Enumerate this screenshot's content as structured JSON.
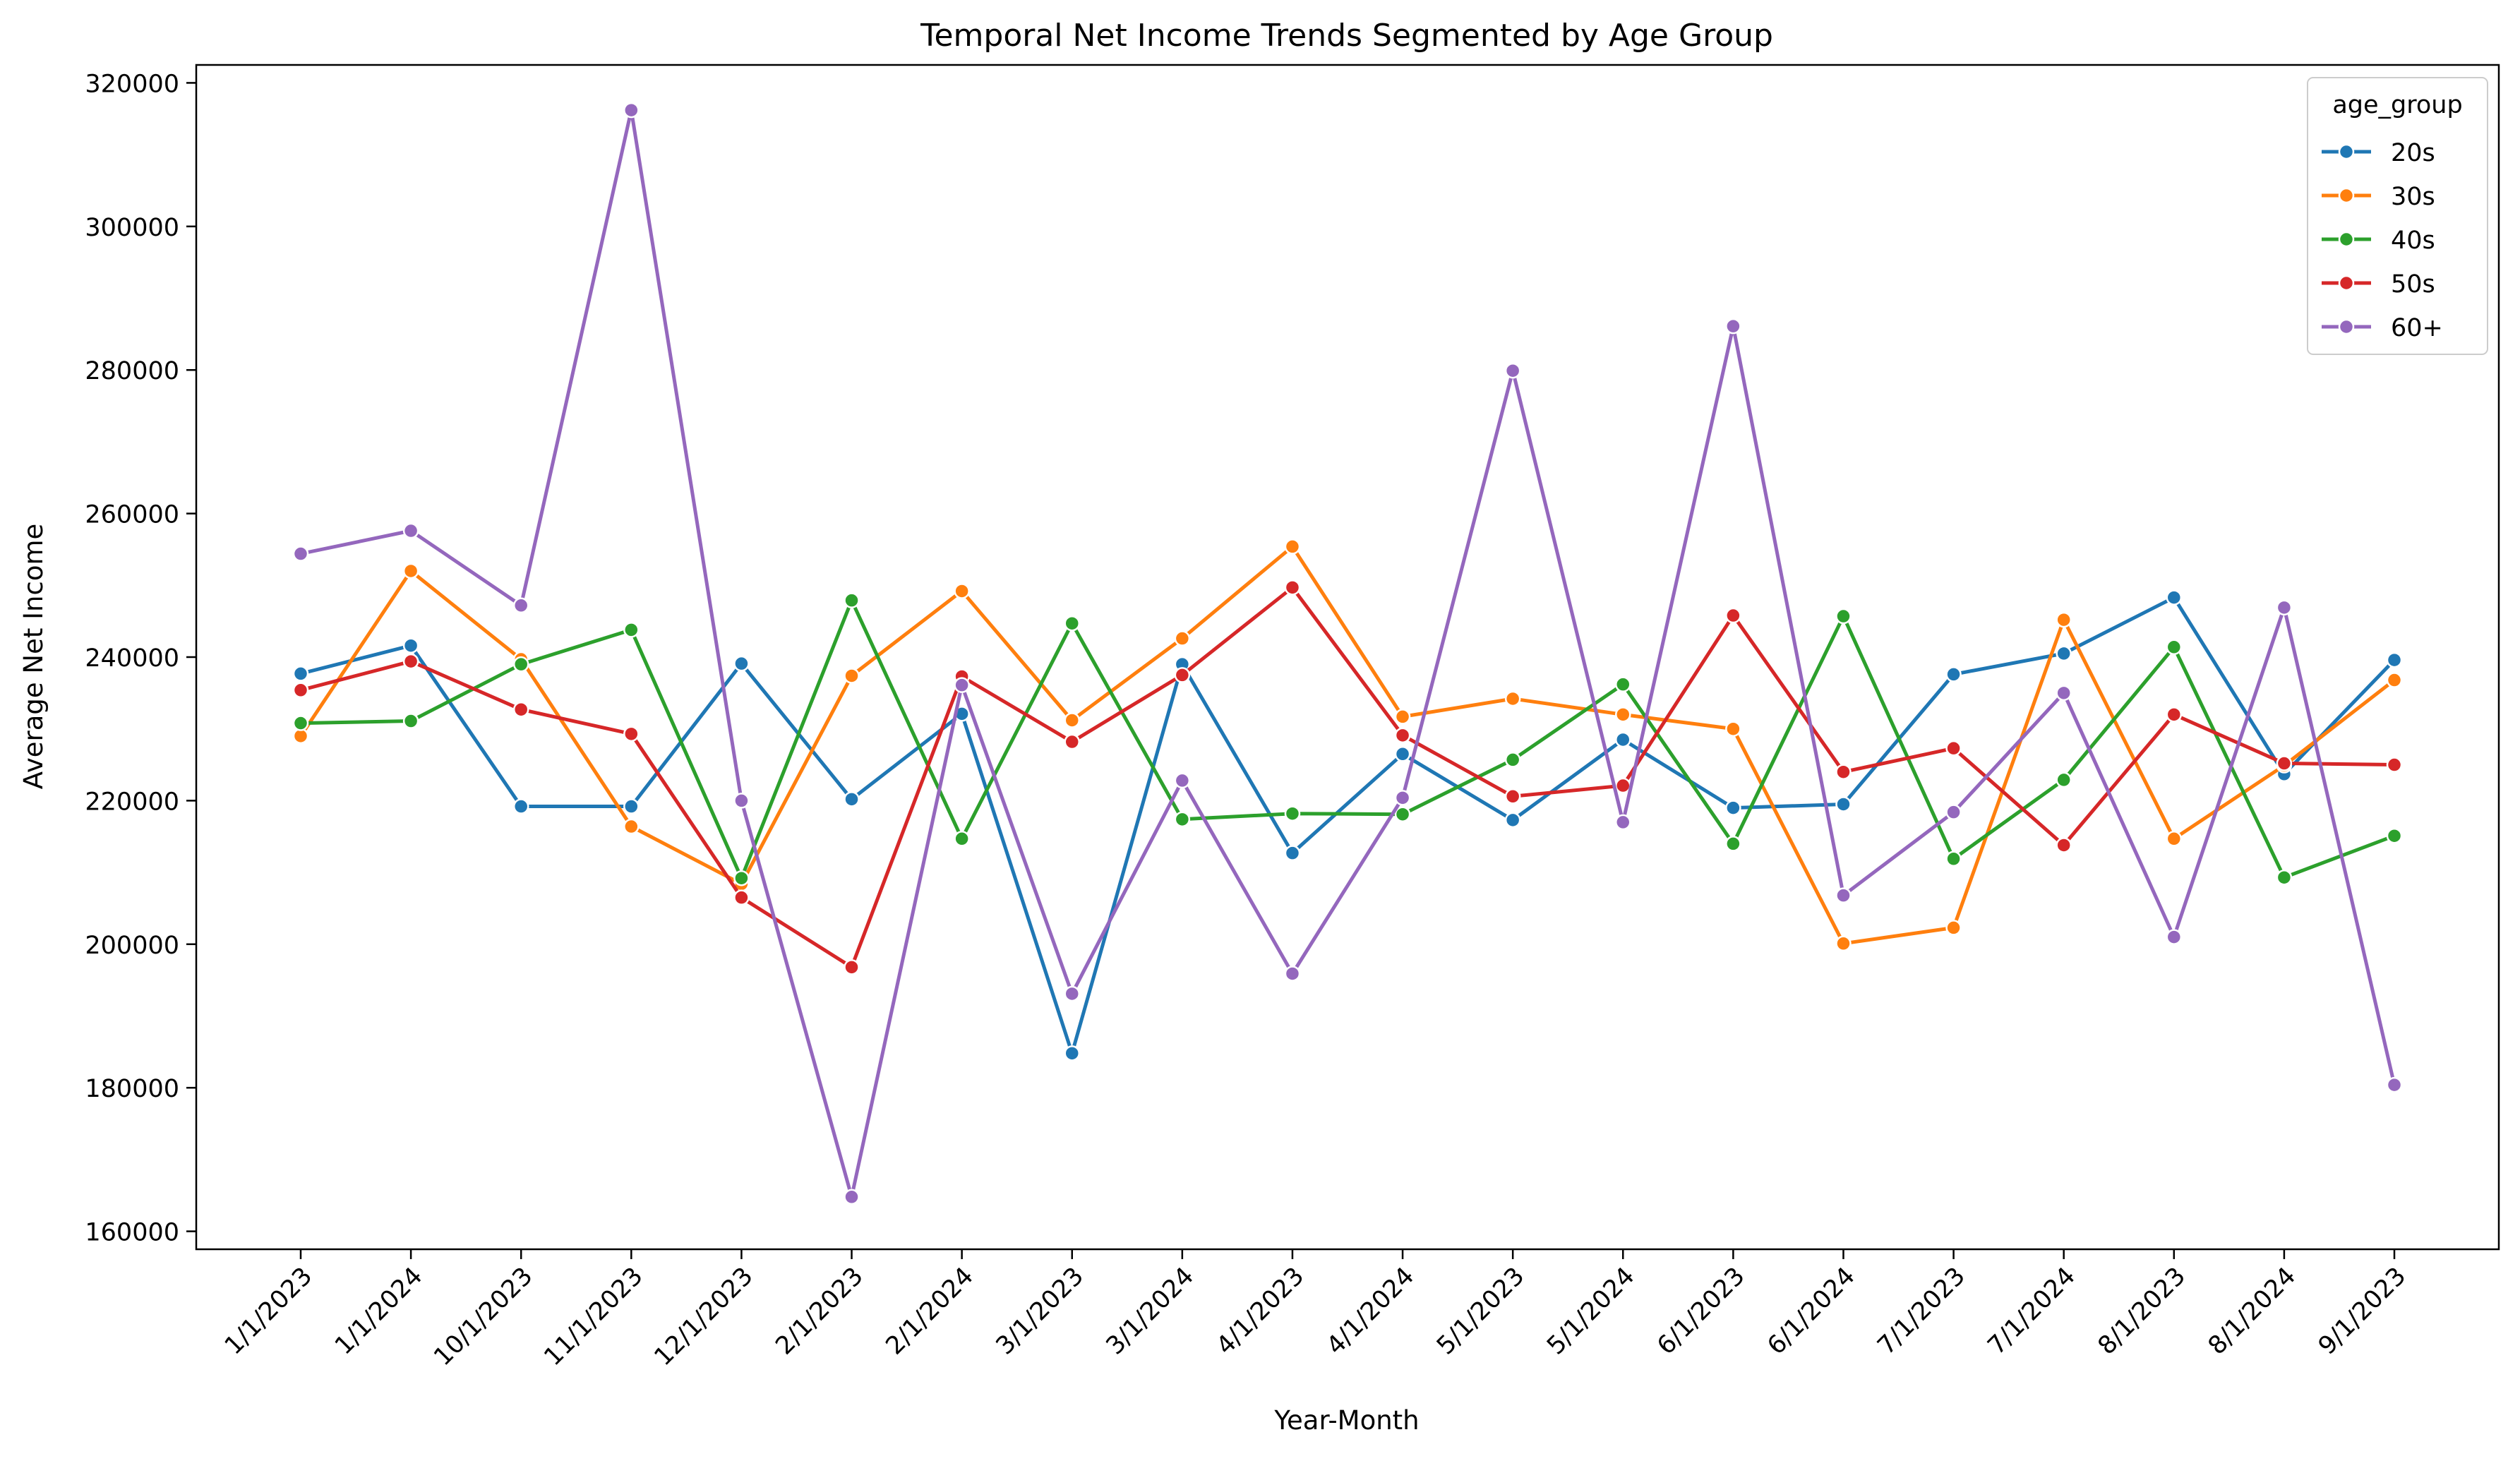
{
  "chart_data": {
    "type": "line",
    "title": "Temporal Net Income Trends Segmented by Age Group",
    "xlabel": "Year-Month",
    "ylabel": "Average Net Income",
    "categories": [
      "1/1/2023",
      "1/1/2024",
      "10/1/2023",
      "11/1/2023",
      "12/1/2023",
      "2/1/2023",
      "2/1/2024",
      "3/1/2023",
      "3/1/2024",
      "4/1/2023",
      "4/1/2024",
      "5/1/2023",
      "5/1/2024",
      "6/1/2023",
      "6/1/2024",
      "7/1/2023",
      "7/1/2024",
      "8/1/2023",
      "8/1/2024",
      "9/1/2023"
    ],
    "ylim": [
      157500,
      322500
    ],
    "yticks": [
      160000,
      180000,
      200000,
      220000,
      240000,
      260000,
      280000,
      300000,
      320000
    ],
    "ytick_labels": [
      "160000",
      "180000",
      "200000",
      "220000",
      "240000",
      "260000",
      "280000",
      "300000",
      "320000"
    ],
    "grid": false,
    "legend": {
      "title": "age_group",
      "position": "top-right"
    },
    "series": [
      {
        "name": "20s",
        "color": "#1f77b4",
        "values": [
          237700,
          241600,
          219200,
          219200,
          239100,
          220200,
          232100,
          184800,
          239000,
          212700,
          226500,
          217300,
          228500,
          219000,
          219500,
          237600,
          240500,
          248300,
          223700,
          239600
        ]
      },
      {
        "name": "30s",
        "color": "#ff7f0e",
        "values": [
          229000,
          252000,
          239700,
          216400,
          208400,
          237400,
          249200,
          231200,
          242600,
          255400,
          231700,
          234200,
          232000,
          230000,
          200100,
          202300,
          245200,
          214700,
          224900,
          236800
        ]
      },
      {
        "name": "40s",
        "color": "#2ca02c",
        "values": [
          230800,
          231100,
          239000,
          243800,
          209200,
          247900,
          214700,
          244700,
          217400,
          218200,
          218100,
          225700,
          236200,
          214000,
          245700,
          211900,
          222900,
          241400,
          209300,
          215100
        ]
      },
      {
        "name": "50s",
        "color": "#d62728",
        "values": [
          235400,
          239400,
          232700,
          229300,
          206500,
          196800,
          237300,
          228200,
          237500,
          249700,
          229100,
          220600,
          222100,
          245800,
          224000,
          227300,
          213800,
          232000,
          225200,
          225000
        ]
      },
      {
        "name": "60+",
        "color": "#9467bd",
        "values": [
          254400,
          257600,
          247200,
          316200,
          220000,
          164800,
          236100,
          193100,
          222800,
          195900,
          220400,
          279900,
          217000,
          286100,
          206800,
          218400,
          235000,
          201000,
          246900,
          180400
        ]
      }
    ]
  }
}
